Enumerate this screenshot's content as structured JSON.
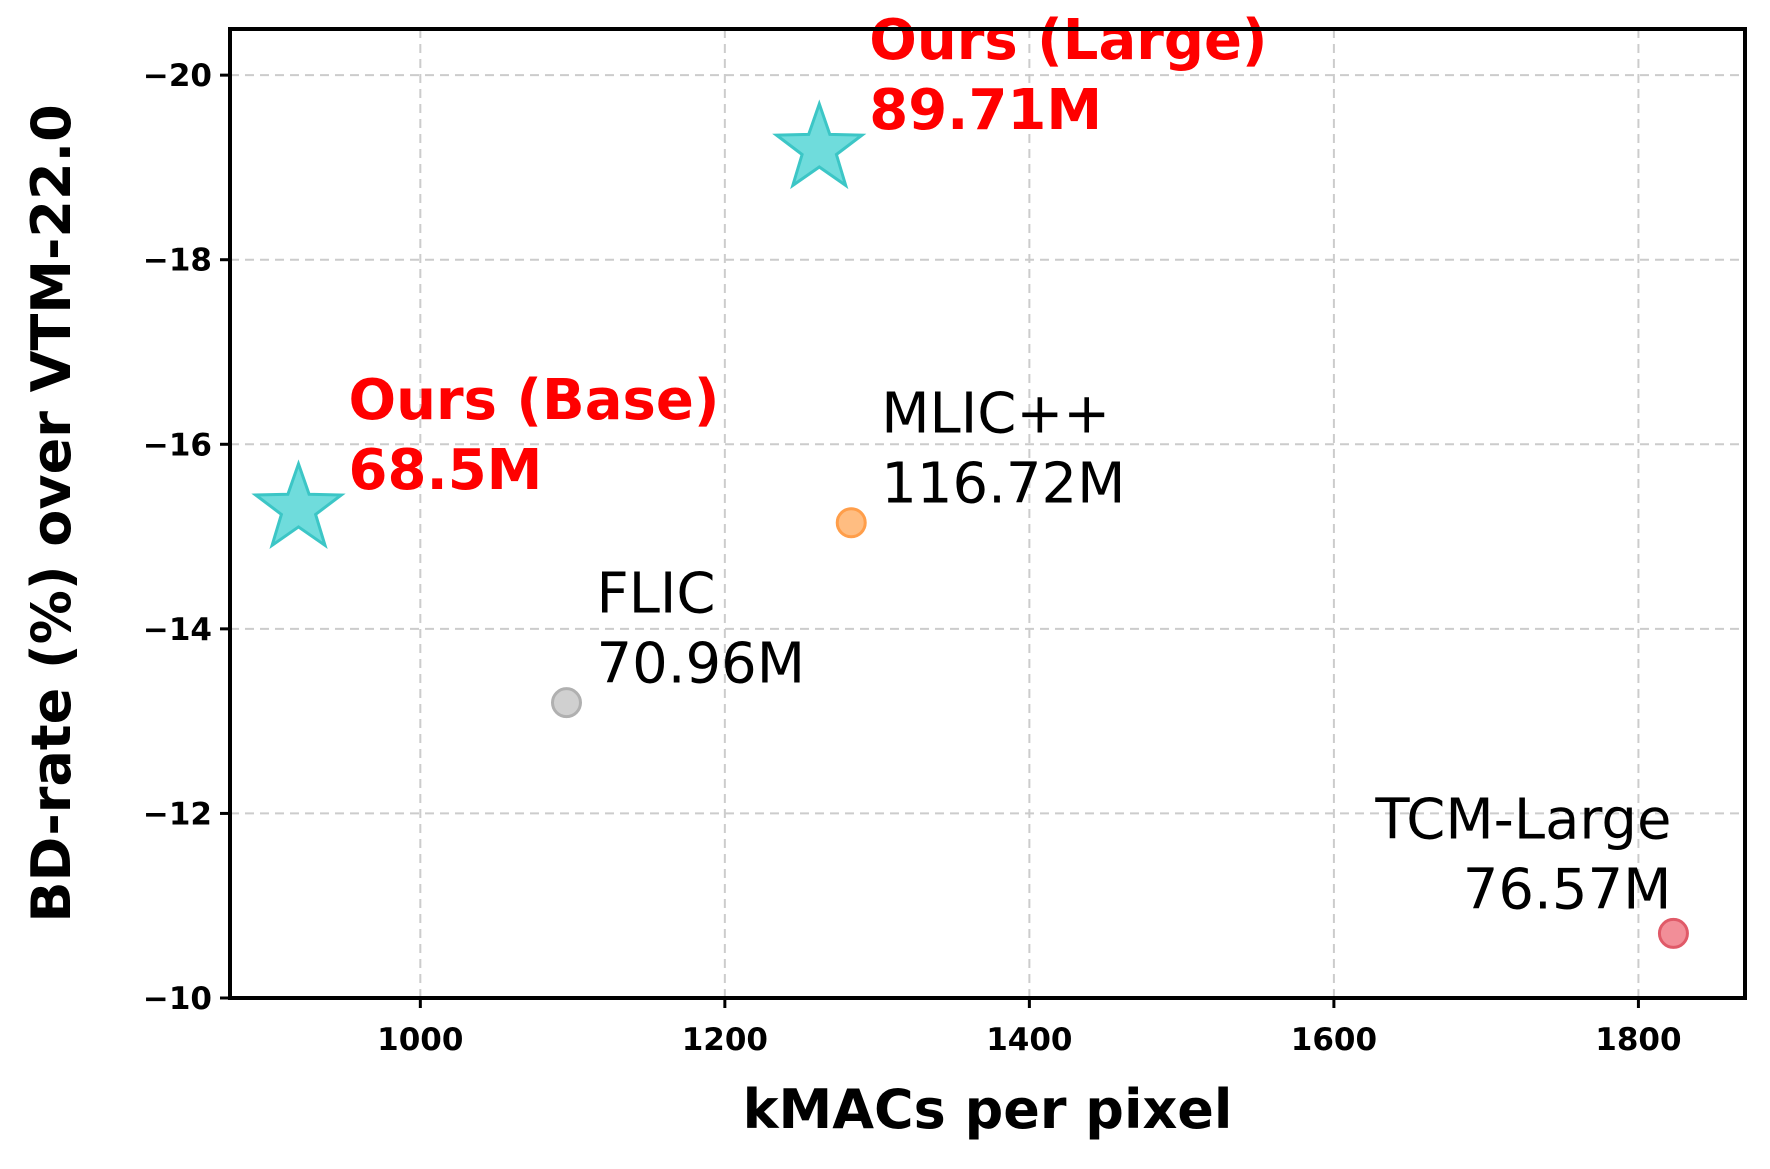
{
  "chart_data": {
    "type": "scatter",
    "xlabel": "kMACs per pixel",
    "ylabel": "BD-rate (%) over VTM-22.0",
    "xlim": [
      875,
      1870
    ],
    "ylim": [
      -10,
      -20.5
    ],
    "y_inverted": true,
    "x_ticks": [
      1000,
      1200,
      1400,
      1600,
      1800
    ],
    "x_tick_labels": [
      "1000",
      "1200",
      "1400",
      "1600",
      "1800"
    ],
    "y_ticks": [
      -10,
      -12,
      -14,
      -16,
      -18,
      -20
    ],
    "y_tick_labels": [
      "−10",
      "−12",
      "−14",
      "−16",
      "−18",
      "−20"
    ],
    "grid": true,
    "points": [
      {
        "name": "Ours (Large)",
        "params": "89.71M",
        "x": 1262,
        "y": -19.2,
        "marker": "star",
        "color": "#56d6d6",
        "edge": "#3cc6c6",
        "label_color": "#ff0000",
        "bold": true,
        "label_side": "right-above"
      },
      {
        "name": "Ours (Base)",
        "params": "68.5M",
        "x": 920,
        "y": -15.3,
        "marker": "star",
        "color": "#56d6d6",
        "edge": "#3cc6c6",
        "label_color": "#ff0000",
        "bold": true,
        "label_side": "right-above"
      },
      {
        "name": "MLIC++",
        "params": "116.72M",
        "x": 1283,
        "y": -15.15,
        "marker": "circle",
        "color": "#ffb26b",
        "edge": "#ff9e4a",
        "label_color": "#000000",
        "bold": false,
        "label_side": "right-above"
      },
      {
        "name": "FLIC",
        "params": "70.96M",
        "x": 1096,
        "y": -13.2,
        "marker": "circle",
        "color": "#c8c8c8",
        "edge": "#b0b0b0",
        "label_color": "#000000",
        "bold": false,
        "label_side": "right-above"
      },
      {
        "name": "TCM-Large",
        "params": "76.57M",
        "x": 1823,
        "y": -10.7,
        "marker": "circle",
        "color": "#f07a86",
        "edge": "#e05a68",
        "label_color": "#000000",
        "bold": false,
        "label_side": "left-above"
      }
    ]
  }
}
